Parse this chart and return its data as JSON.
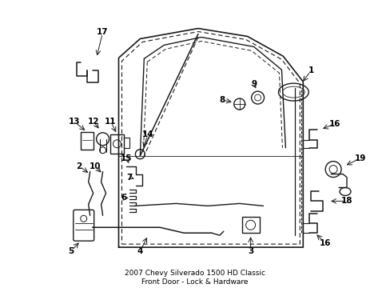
{
  "title": "2007 Chevy Silverado 1500 HD Classic\nFront Door - Lock & Hardware",
  "background_color": "#ffffff",
  "line_color": "#1a1a1a",
  "label_color": "#000000",
  "fig_width": 4.89,
  "fig_height": 3.6,
  "dpi": 100,
  "label_fontsize": 7.5,
  "lw": 1.0
}
